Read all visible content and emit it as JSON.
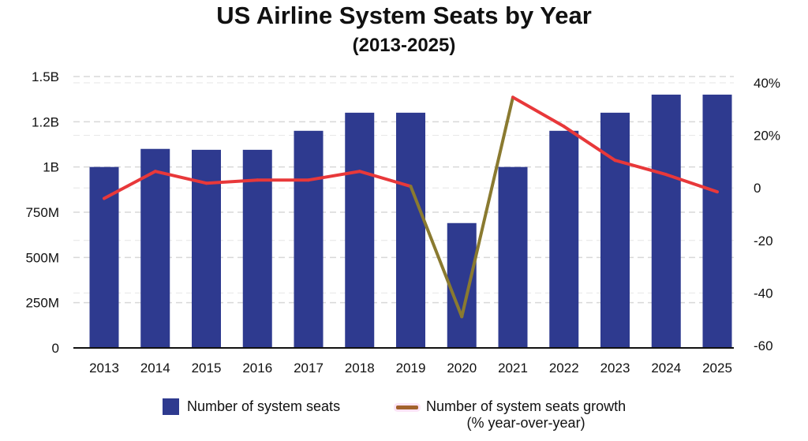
{
  "chart_data": {
    "type": "bar+line",
    "title": "US Airline System Seats by Year",
    "subtitle": "(2013-2025)",
    "categories": [
      "2013",
      "2014",
      "2015",
      "2016",
      "2017",
      "2018",
      "2019",
      "2020",
      "2021",
      "2022",
      "2023",
      "2024",
      "2025"
    ],
    "series": [
      {
        "name": "Number of system seats",
        "type": "bar",
        "axis": "left",
        "color": "#2e3a8f",
        "values": [
          1.0,
          1.1,
          1.095,
          1.095,
          1.2,
          1.3,
          1.3,
          0.69,
          1.0,
          1.2,
          1.3,
          1.4,
          1.4
        ]
      },
      {
        "name": "Number of system seats growth",
        "name_line2": "(% year-over-year)",
        "type": "line",
        "axis": "right",
        "color": "#e8383a",
        "highlight_color": "#8a7a30",
        "values": [
          -4,
          6.3,
          1.8,
          3,
          3,
          6.3,
          0.6,
          -49,
          34.5,
          23.4,
          10.5,
          5.1,
          -1.5
        ]
      }
    ],
    "left_axis": {
      "unit": "B",
      "ylim": [
        0,
        1.5
      ],
      "ticks": [
        0,
        0.25,
        0.5,
        0.75,
        1.0,
        1.25,
        1.5
      ],
      "tick_labels": [
        "0",
        "250M",
        "500M",
        "750M",
        "1B",
        "1.2B",
        "1.5B"
      ]
    },
    "right_axis": {
      "unit": "%",
      "ylim": [
        -60,
        40
      ],
      "ticks": [
        -60,
        -40,
        -20,
        0,
        20,
        40
      ],
      "tick_labels": [
        "-60",
        "-40",
        "-20",
        "0",
        "20%",
        "40%"
      ]
    },
    "grid": true,
    "legend": "bottom"
  }
}
